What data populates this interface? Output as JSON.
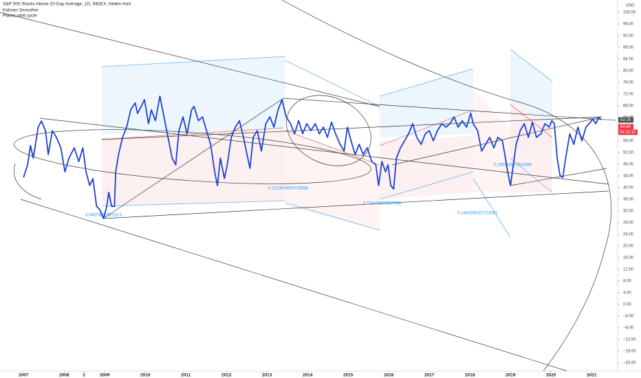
{
  "chart_data": {
    "type": "line",
    "title": "S&P 500 Stocks Above 20-Day Average, 1D, INDEX, Heikin Ashi",
    "indicators": [
      "Kalman Smoother",
      "Planet orbit cycle"
    ],
    "y_unit": "USD",
    "x": [
      2007.0,
      2007.1,
      2007.17,
      2007.24,
      2007.36,
      2007.44,
      2007.54,
      2007.61,
      2007.71,
      2007.81,
      2007.92,
      2008.02,
      2008.12,
      2008.25,
      2008.36,
      2008.46,
      2008.54,
      2008.63,
      2008.71,
      2008.8,
      2008.88,
      2008.97,
      2009.05,
      2009.1,
      2009.17,
      2009.24,
      2009.27,
      2009.34,
      2009.44,
      2009.54,
      2009.64,
      2009.75,
      2009.81,
      2009.9,
      2009.98,
      2010.08,
      2010.15,
      2010.25,
      2010.36,
      2010.46,
      2010.56,
      2010.66,
      2010.75,
      2010.83,
      2010.93,
      2011.03,
      2011.14,
      2011.2,
      2011.31,
      2011.41,
      2011.51,
      2011.61,
      2011.71,
      2011.78,
      2011.85,
      2011.95,
      2012.02,
      2012.12,
      2012.22,
      2012.32,
      2012.42,
      2012.49,
      2012.58,
      2012.66,
      2012.76,
      2012.86,
      2012.97,
      2013.07,
      2013.17,
      2013.27,
      2013.37,
      2013.47,
      2013.58,
      2013.68,
      2013.78,
      2013.88,
      2013.98,
      2014.08,
      2014.19,
      2014.29,
      2014.39,
      2014.49,
      2014.59,
      2014.69,
      2014.8,
      2014.9,
      2014.98,
      2015.07,
      2015.17,
      2015.27,
      2015.37,
      2015.47,
      2015.58,
      2015.68,
      2015.75,
      2015.83,
      2015.92,
      2015.98,
      2016.05,
      2016.12,
      2016.19,
      2016.29,
      2016.39,
      2016.49,
      2016.59,
      2016.69,
      2016.8,
      2016.9,
      2017.0,
      2017.1,
      2017.2,
      2017.31,
      2017.41,
      2017.51,
      2017.61,
      2017.71,
      2017.81,
      2017.92,
      2018.02,
      2018.08,
      2018.19,
      2018.29,
      2018.39,
      2018.49,
      2018.59,
      2018.69,
      2018.8,
      2018.86,
      2018.93,
      2019.0,
      2019.07,
      2019.14,
      2019.24,
      2019.34,
      2019.44,
      2019.54,
      2019.64,
      2019.75,
      2019.85,
      2019.95,
      2020.02,
      2020.08,
      2020.15,
      2020.22,
      2020.29,
      2020.36,
      2020.46,
      2020.56,
      2020.66,
      2020.76,
      2020.86,
      2020.97,
      2021.03,
      2021.1,
      2021.17,
      2021.24
    ],
    "series": [
      {
        "color": "#1a3fd6",
        "values": [
          43.5,
          47.8,
          54.4,
          50.1,
          60.7,
          62.8,
          59.5,
          51.3,
          59.5,
          57.2,
          53.6,
          45.4,
          50.1,
          53.6,
          48.9,
          53.6,
          45.4,
          40.7,
          43.1,
          33.6,
          32.5,
          29.4,
          33.6,
          38.4,
          33.6,
          33.6,
          45.4,
          51.3,
          57.2,
          60.7,
          66.6,
          69.0,
          65.4,
          67.8,
          70.1,
          61.9,
          66.6,
          62.9,
          71.3,
          64.2,
          57.2,
          50.1,
          47.8,
          59.5,
          64.2,
          58.4,
          66.6,
          67.8,
          62.9,
          64.2,
          59.5,
          54.8,
          45.4,
          40.7,
          50.1,
          43.1,
          47.8,
          57.2,
          60.7,
          62.9,
          57.2,
          52.5,
          46.6,
          57.2,
          59.5,
          52.5,
          61.9,
          64.2,
          60.7,
          66.6,
          70.1,
          64.2,
          61.9,
          58.4,
          62.9,
          58.4,
          61.9,
          59.5,
          61.9,
          58.4,
          60.7,
          57.2,
          62.4,
          58.4,
          54.8,
          52.5,
          60.7,
          56.0,
          51.3,
          54.8,
          51.3,
          53.6,
          48.9,
          47.8,
          40.7,
          48.9,
          45.4,
          47.8,
          40.7,
          39.5,
          50.1,
          53.6,
          56.0,
          58.4,
          61.9,
          57.2,
          54.8,
          58.4,
          59.5,
          56.0,
          59.5,
          61.9,
          60.7,
          61.9,
          64.2,
          60.7,
          62.9,
          60.7,
          65.5,
          61.9,
          59.5,
          52.5,
          54.8,
          57.2,
          53.6,
          57.2,
          56.0,
          51.3,
          45.4,
          40.7,
          47.8,
          54.8,
          59.5,
          61.9,
          57.2,
          62.4,
          57.2,
          58.4,
          61.9,
          60.7,
          62.9,
          61.9,
          50.1,
          44.2,
          43.5,
          50.1,
          58.4,
          54.8,
          60.7,
          56.0,
          60.7,
          62.4,
          63.5,
          61.9,
          63.8,
          63.2
        ]
      }
    ],
    "xlim": [
      2006.42,
      2021.64
    ],
    "ylim": [
      -22.8,
      104.2
    ],
    "xticks": [
      2007,
      2008,
      {
        "value": 2008.49,
        "label": "2"
      },
      2009,
      2010,
      2011,
      2012,
      2013,
      2014,
      2015,
      2016,
      2017,
      2018,
      2019,
      2020,
      2021
    ],
    "yticks": [
      {
        "value": 100,
        "label": "100.00"
      },
      {
        "value": 96,
        "label": "96.00"
      },
      {
        "value": 92,
        "label": "92.00"
      },
      {
        "value": 88,
        "label": "88.00"
      },
      {
        "value": 84,
        "label": "84.00"
      },
      {
        "value": 80,
        "label": "80.00"
      },
      {
        "value": 76,
        "label": "76.00"
      },
      {
        "value": 72,
        "label": "72.00"
      },
      {
        "value": 68,
        "label": "68.00"
      },
      {
        "value": 64,
        "label": "64.00"
      },
      {
        "value": 56,
        "label": "56.00"
      },
      {
        "value": 52,
        "label": "52.00"
      },
      {
        "value": 48,
        "label": "48.00"
      },
      {
        "value": 44,
        "label": "44.00"
      },
      {
        "value": 40,
        "label": "40.00"
      },
      {
        "value": 36,
        "label": "36.00"
      },
      {
        "value": 32,
        "label": "32.00"
      },
      {
        "value": 28,
        "label": "28.00"
      },
      {
        "value": 24,
        "label": "24.00"
      },
      {
        "value": 20,
        "label": "20.00"
      },
      {
        "value": 16,
        "label": "16.00"
      },
      {
        "value": 12,
        "label": "12.00"
      },
      {
        "value": 8,
        "label": "8.00"
      },
      {
        "value": 4,
        "label": "4.00"
      },
      {
        "value": 0,
        "label": "0.00"
      },
      {
        "value": -4,
        "label": "−4.00"
      },
      {
        "value": -8,
        "label": "−8.00"
      },
      {
        "value": -12,
        "label": "−12.00"
      },
      {
        "value": -16,
        "label": "−16.00"
      },
      {
        "value": -20,
        "label": "−20.00"
      }
    ],
    "price_labels": [
      {
        "value": 63.16,
        "color": "#4d4d4d"
      },
      {
        "value": 60.84,
        "color": "#f23645"
      }
    ],
    "countdown": "04:23:10",
    "annotations": [
      "0.0467365285213 3",
      "0.2113634593733586",
      "0.151478609597988",
      "0.155352817924395",
      "0.1444240327122082"
    ]
  }
}
